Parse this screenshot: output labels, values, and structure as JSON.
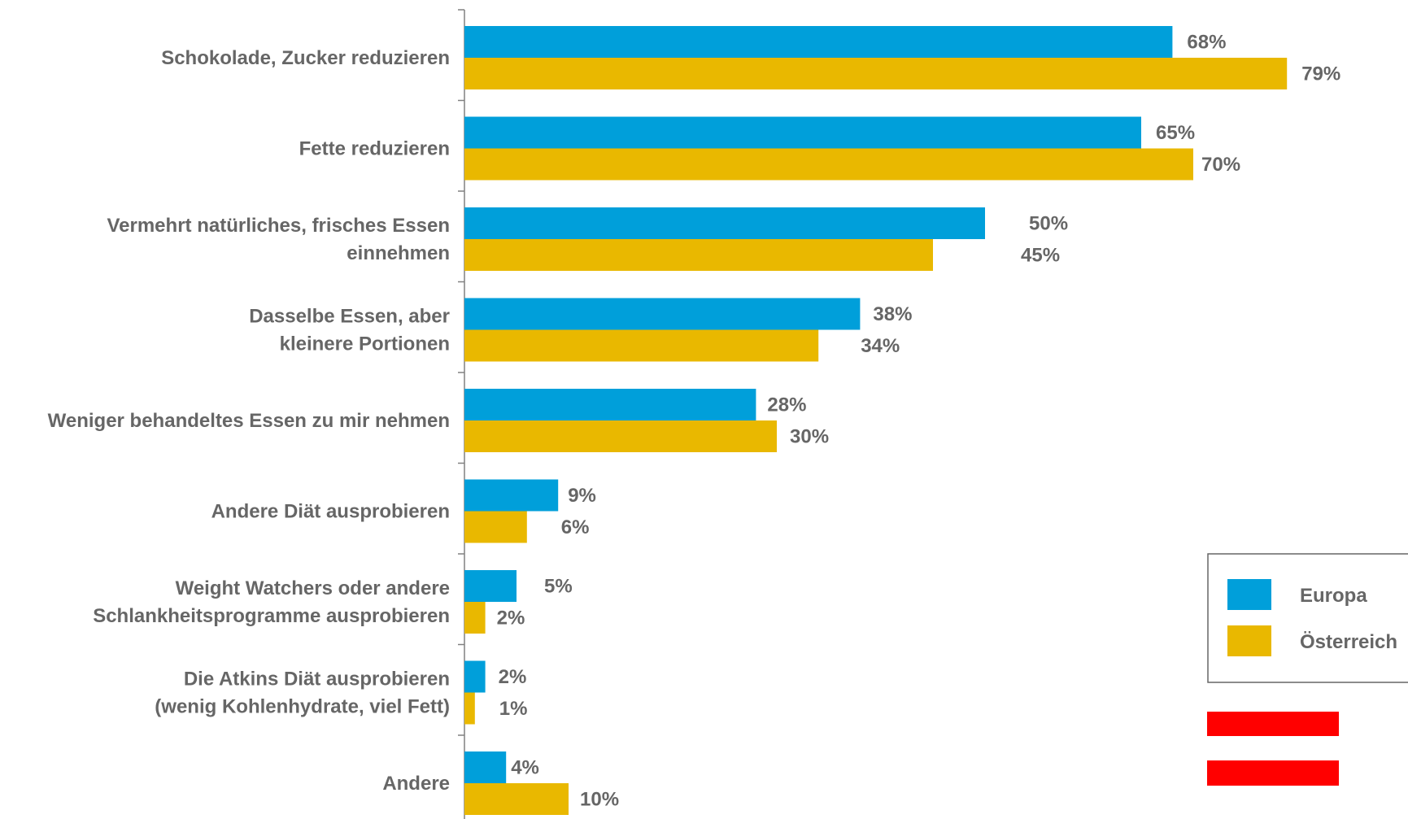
{
  "chart_data": {
    "type": "bar",
    "orientation": "horizontal",
    "categories": [
      [
        "Schokolade, Zucker reduzieren"
      ],
      [
        "Fette reduzieren"
      ],
      [
        "Vermehrt natürliches, frisches Essen",
        "einnehmen"
      ],
      [
        "Dasselbe Essen, aber",
        "kleinere Portionen"
      ],
      [
        "Weniger behandeltes Essen zu mir nehmen"
      ],
      [
        "Andere Diät ausprobieren"
      ],
      [
        "Weight Watchers oder andere",
        "Schlankheitsprogramme ausprobieren"
      ],
      [
        "Die Atkins Diät ausprobieren",
        "(wenig Kohlenhydrate, viel Fett)"
      ],
      [
        "Andere"
      ]
    ],
    "series": [
      {
        "name": "Europa",
        "color": "#009FDA",
        "values": [
          68,
          65,
          50,
          38,
          28,
          9,
          5,
          2,
          4
        ],
        "labels": [
          "68%",
          "65%",
          "50%",
          "38%",
          "28%",
          "9%",
          "5%",
          "2%",
          "4%"
        ]
      },
      {
        "name": "Österreich",
        "color": "#E9B800",
        "values": [
          79,
          70,
          45,
          34,
          30,
          6,
          2,
          1,
          10
        ],
        "labels": [
          "79%",
          "70%",
          "45%",
          "34%",
          "30%",
          "6%",
          "2%",
          "1%",
          "10%"
        ]
      }
    ],
    "xlim": [
      0,
      100
    ],
    "legend_position": "right",
    "flag_colors": [
      "#FF0000",
      "#FFFFFF",
      "#FF0000"
    ],
    "flag_icon": "austria-flag-icon"
  }
}
